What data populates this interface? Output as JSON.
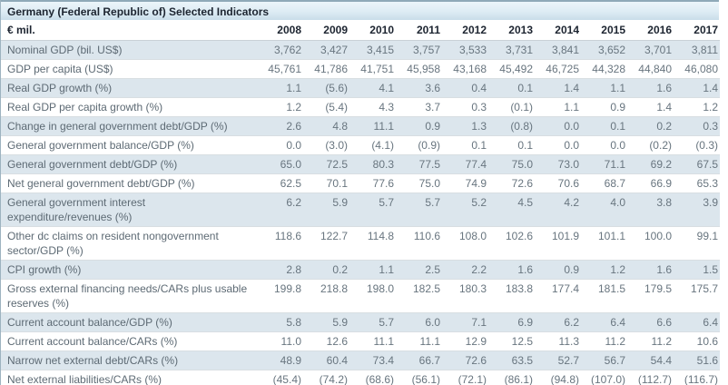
{
  "title_bar": {
    "title": "Germany (Federal Republic of) Selected Indicators"
  },
  "chart_data": {
    "type": "table",
    "title": "Germany (Federal Republic of) Selected Indicators",
    "unit_label": "€ mil.",
    "columns": [
      "2008",
      "2009",
      "2010",
      "2011",
      "2012",
      "2013",
      "2014",
      "2015",
      "2016",
      "2017"
    ],
    "rows": [
      {
        "label": "Nominal GDP (bil. US$)",
        "values": [
          "3,762",
          "3,427",
          "3,415",
          "3,757",
          "3,533",
          "3,731",
          "3,841",
          "3,652",
          "3,701",
          "3,811"
        ]
      },
      {
        "label": "GDP per capita (US$)",
        "values": [
          "45,761",
          "41,786",
          "41,751",
          "45,958",
          "43,168",
          "45,492",
          "46,725",
          "44,328",
          "44,840",
          "46,080"
        ]
      },
      {
        "label": "Real GDP growth (%)",
        "values": [
          "1.1",
          "(5.6)",
          "4.1",
          "3.6",
          "0.4",
          "0.1",
          "1.4",
          "1.1",
          "1.6",
          "1.4"
        ]
      },
      {
        "label": "Real GDP per capita growth (%)",
        "values": [
          "1.2",
          "(5.4)",
          "4.3",
          "3.7",
          "0.3",
          "(0.1)",
          "1.1",
          "0.9",
          "1.4",
          "1.2"
        ]
      },
      {
        "label": "Change in general government debt/GDP (%)",
        "values": [
          "2.6",
          "4.8",
          "11.1",
          "0.9",
          "1.3",
          "(0.8)",
          "0.0",
          "0.1",
          "0.2",
          "0.3"
        ]
      },
      {
        "label": "General government balance/GDP (%)",
        "values": [
          "0.0",
          "(3.0)",
          "(4.1)",
          "(0.9)",
          "0.1",
          "0.1",
          "0.0",
          "0.0",
          "(0.2)",
          "(0.3)"
        ]
      },
      {
        "label": "General government debt/GDP (%)",
        "values": [
          "65.0",
          "72.5",
          "80.3",
          "77.5",
          "77.4",
          "75.0",
          "73.0",
          "71.1",
          "69.2",
          "67.5"
        ]
      },
      {
        "label": "Net general government debt/GDP (%)",
        "values": [
          "62.5",
          "70.1",
          "77.6",
          "75.0",
          "74.9",
          "72.6",
          "70.6",
          "68.7",
          "66.9",
          "65.3"
        ]
      },
      {
        "label": "General government interest expenditure/revenues (%)",
        "values": [
          "6.2",
          "5.9",
          "5.7",
          "5.7",
          "5.2",
          "4.5",
          "4.2",
          "4.0",
          "3.8",
          "3.9"
        ]
      },
      {
        "label": "Other dc claims on resident nongovernment sector/GDP (%)",
        "values": [
          "118.6",
          "122.7",
          "114.8",
          "110.6",
          "108.0",
          "102.6",
          "101.9",
          "101.1",
          "100.0",
          "99.1"
        ]
      },
      {
        "label": "CPI growth (%)",
        "values": [
          "2.8",
          "0.2",
          "1.1",
          "2.5",
          "2.2",
          "1.6",
          "0.9",
          "1.2",
          "1.6",
          "1.5"
        ]
      },
      {
        "label": "Gross external financing needs/CARs plus usable reserves (%)",
        "values": [
          "199.8",
          "218.8",
          "198.0",
          "182.5",
          "180.3",
          "183.8",
          "177.4",
          "181.5",
          "179.5",
          "175.7"
        ]
      },
      {
        "label": "Current account balance/GDP (%)",
        "values": [
          "5.8",
          "5.9",
          "5.7",
          "6.0",
          "7.1",
          "6.9",
          "6.2",
          "6.4",
          "6.6",
          "6.4"
        ]
      },
      {
        "label": "Current account balance/CARs (%)",
        "values": [
          "11.0",
          "12.6",
          "11.1",
          "11.1",
          "12.9",
          "12.5",
          "11.3",
          "11.2",
          "11.2",
          "10.6"
        ]
      },
      {
        "label": "Narrow net external debt/CARs (%)",
        "values": [
          "48.9",
          "60.4",
          "73.4",
          "66.7",
          "72.6",
          "63.5",
          "52.7",
          "56.7",
          "54.4",
          "51.6"
        ]
      },
      {
        "label": "Net external liabilities/CARs (%)",
        "values": [
          "(45.4)",
          "(74.2)",
          "(68.6)",
          "(56.1)",
          "(72.1)",
          "(86.1)",
          "(94.8)",
          "(107.0)",
          "(112.7)",
          "(116.7)"
        ]
      }
    ],
    "layout": {
      "first_row_shading": "shaded",
      "alternating_rows": true
    }
  },
  "colors": {
    "title_gradient_top": "#ecf5fa",
    "title_gradient_bottom": "#c9dde9",
    "row_shaded": "#dce6ed",
    "row_plain": "#ffffff",
    "header_text": "#1c2430",
    "data_text": "#68757f",
    "panel_border": "#9db3c0"
  }
}
